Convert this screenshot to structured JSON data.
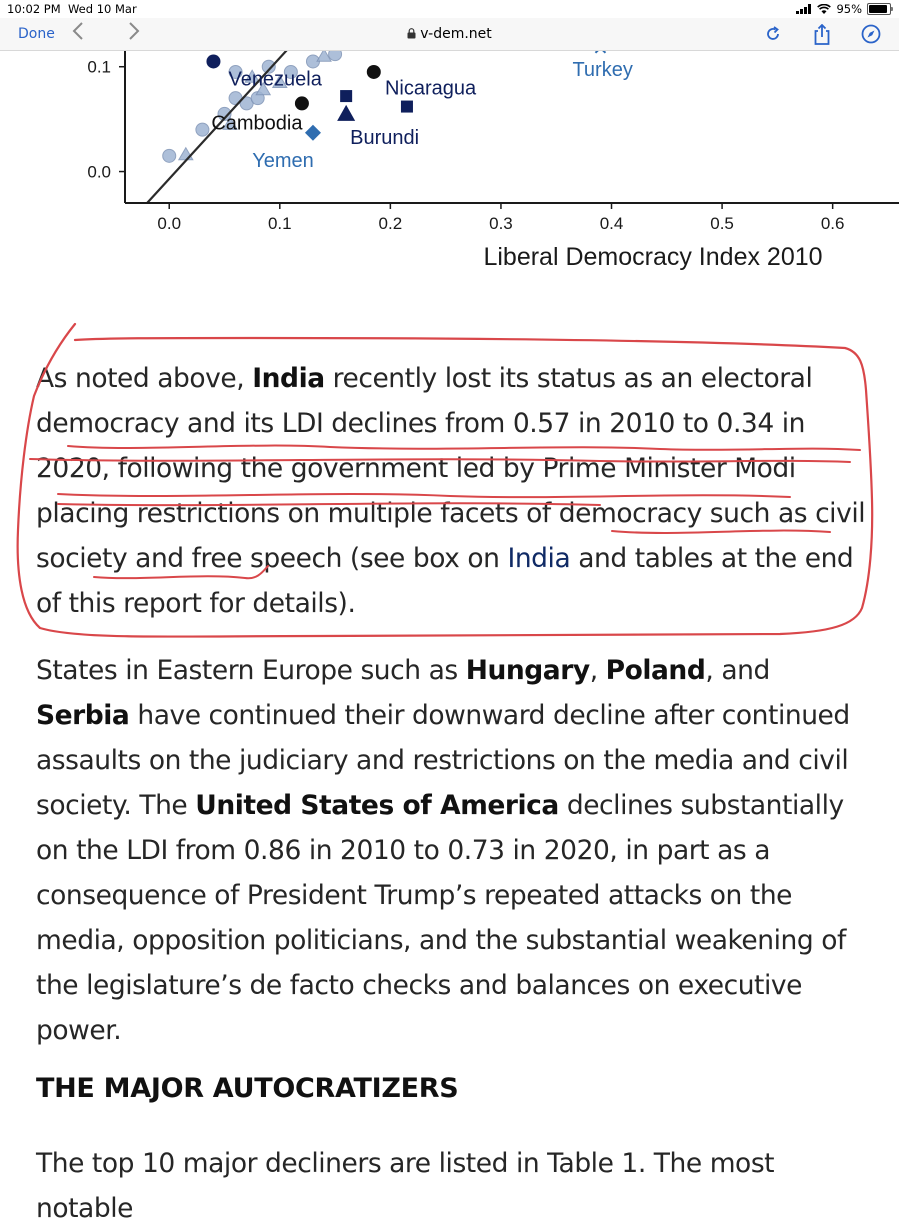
{
  "status_bar": {
    "time": "10:02 PM",
    "date": "Wed 10 Mar",
    "battery": "95%",
    "battery_level": 0.95
  },
  "browser": {
    "done_label": "Done",
    "back_icon": "chevron-left-icon",
    "forward_icon": "chevron-right-icon",
    "lock_icon": "lock-icon",
    "address": "v-dem.net",
    "reload_icon": "reload-icon",
    "share_icon": "share-icon",
    "safari_icon": "compass-icon"
  },
  "chart_data": {
    "type": "scatter",
    "xlabel": "Liberal Democracy Index 2010",
    "xlim": [
      -0.04,
      0.66
    ],
    "ylim": [
      -0.03,
      0.115
    ],
    "x_ticks": [
      "0.0",
      "0.1",
      "0.2",
      "0.3",
      "0.4",
      "0.5",
      "0.6"
    ],
    "y_ticks": [
      "0.0",
      "0.1"
    ],
    "labeled_points": [
      {
        "name": "Venezuela",
        "x": 0.04,
        "y": 0.105,
        "color": "#0f1f5c"
      },
      {
        "name": "Nicaragua",
        "x": 0.215,
        "y": 0.062,
        "color": "#0f1f5c"
      },
      {
        "name": "Cambodia",
        "x": 0.12,
        "y": 0.065,
        "color": "#111111"
      },
      {
        "name": "Burundi",
        "x": 0.16,
        "y": 0.055,
        "color": "#0f1f5c"
      },
      {
        "name": "Yemen",
        "x": 0.13,
        "y": 0.037,
        "color": "#2f6db0"
      },
      {
        "name": "Turkey",
        "x": 0.39,
        "y": 0.118,
        "color": "#2f6db0"
      }
    ],
    "other_points": [
      {
        "x": 0.0,
        "y": 0.015
      },
      {
        "x": 0.015,
        "y": 0.016
      },
      {
        "x": 0.03,
        "y": 0.04
      },
      {
        "x": 0.05,
        "y": 0.055
      },
      {
        "x": 0.055,
        "y": 0.045
      },
      {
        "x": 0.06,
        "y": 0.07
      },
      {
        "x": 0.07,
        "y": 0.065
      },
      {
        "x": 0.075,
        "y": 0.09
      },
      {
        "x": 0.08,
        "y": 0.07
      },
      {
        "x": 0.09,
        "y": 0.1
      },
      {
        "x": 0.1,
        "y": 0.085
      },
      {
        "x": 0.11,
        "y": 0.095
      },
      {
        "x": 0.13,
        "y": 0.105
      },
      {
        "x": 0.14,
        "y": 0.11
      },
      {
        "x": 0.15,
        "y": 0.112
      },
      {
        "x": 0.06,
        "y": 0.095
      },
      {
        "x": 0.085,
        "y": 0.078
      }
    ],
    "reference_line": {
      "from": [
        -0.02,
        -0.03
      ],
      "to": [
        0.11,
        0.12
      ]
    }
  },
  "article": {
    "p1": {
      "t1": "As noted above, ",
      "india1": "India",
      "t2": " recently lost its status as an electoral democracy and its LDI declines from 0.57 in 2010 to 0.34 in 2020, following the government led by Prime Minister Modi placing restrictions on multiple facets of democracy such as civil society and free speech (see box on ",
      "india2": "India",
      "t3": " and tables at the end of this report for details)."
    },
    "p2": {
      "t1": "States in Eastern Europe such as ",
      "hungary": "Hungary",
      "t2": ", ",
      "poland": "Poland",
      "t3": ", and ",
      "serbia": "Serbia",
      "t4": " have continued their downward decline after continued assaults on the judiciary and restrictions on the media and civil society. The ",
      "usa": "United States of America",
      "t5": " declines substantially on the LDI from 0.86 in 2010 to 0.73 in 2020, in part as a consequence of President Trump’s repeated attacks on the media, opposition politicians, and the substantial weakening of the legislature’s de facto checks and balances on executive power."
    },
    "heading": "THE MAJOR AUTOCRATIZERS",
    "p3": "The top 10 major decliners are listed in Table 1. The most notable"
  },
  "annotation": {
    "color": "#d9474a"
  }
}
